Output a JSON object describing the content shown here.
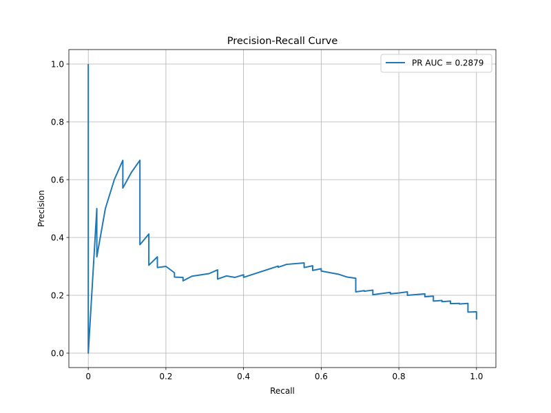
{
  "chart_data": {
    "type": "line",
    "title": "Precision-Recall Curve",
    "xlabel": "Recall",
    "ylabel": "Precision",
    "xlim": [
      -0.05,
      1.05
    ],
    "ylim": [
      -0.05,
      1.05
    ],
    "xticks": [
      0,
      0.2,
      0.4,
      0.6,
      0.8,
      1
    ],
    "xtick_labels": [
      "0",
      "0.2",
      "0.4",
      "0.6",
      "0.8",
      "1.0"
    ],
    "yticks": [
      0,
      0.2,
      0.4,
      0.6,
      0.8,
      1
    ],
    "ytick_labels": [
      "0.0",
      "0.2",
      "0.4",
      "0.6",
      "0.8",
      "1.0"
    ],
    "grid": true,
    "legend_position": "top-right",
    "colors": {
      "series": "#1f77b4",
      "grid": "#b0b0b0"
    },
    "series": [
      {
        "name": "PR AUC = 0.2879",
        "x": [
          0,
          0,
          0.011,
          0.022,
          0.022,
          0.044,
          0.067,
          0.089,
          0.089,
          0.111,
          0.133,
          0.133,
          0.156,
          0.156,
          0.178,
          0.178,
          0.2,
          0.222,
          0.222,
          0.244,
          0.244,
          0.267,
          0.311,
          0.333,
          0.333,
          0.356,
          0.378,
          0.4,
          0.4,
          0.489,
          0.489,
          0.511,
          0.556,
          0.556,
          0.578,
          0.578,
          0.6,
          0.6,
          0.644,
          0.667,
          0.689,
          0.689,
          0.711,
          0.711,
          0.733,
          0.733,
          0.778,
          0.778,
          0.8,
          0.822,
          0.822,
          0.867,
          0.867,
          0.889,
          0.889,
          0.911,
          0.911,
          0.933,
          0.933,
          0.956,
          0.956,
          0.978,
          0.978,
          1.0,
          1.0
        ],
        "y": [
          1.0,
          0.0,
          0.25,
          0.5,
          0.333,
          0.5,
          0.6,
          0.667,
          0.571,
          0.625,
          0.667,
          0.375,
          0.412,
          0.304,
          0.333,
          0.296,
          0.3,
          0.278,
          0.263,
          0.262,
          0.25,
          0.266,
          0.275,
          0.288,
          0.256,
          0.267,
          0.262,
          0.271,
          0.262,
          0.301,
          0.297,
          0.307,
          0.312,
          0.296,
          0.302,
          0.286,
          0.292,
          0.284,
          0.273,
          0.263,
          0.259,
          0.212,
          0.216,
          0.214,
          0.218,
          0.202,
          0.21,
          0.205,
          0.208,
          0.212,
          0.2,
          0.205,
          0.195,
          0.197,
          0.18,
          0.182,
          0.178,
          0.18,
          0.171,
          0.172,
          0.17,
          0.172,
          0.142,
          0.143,
          0.116
        ]
      }
    ]
  }
}
